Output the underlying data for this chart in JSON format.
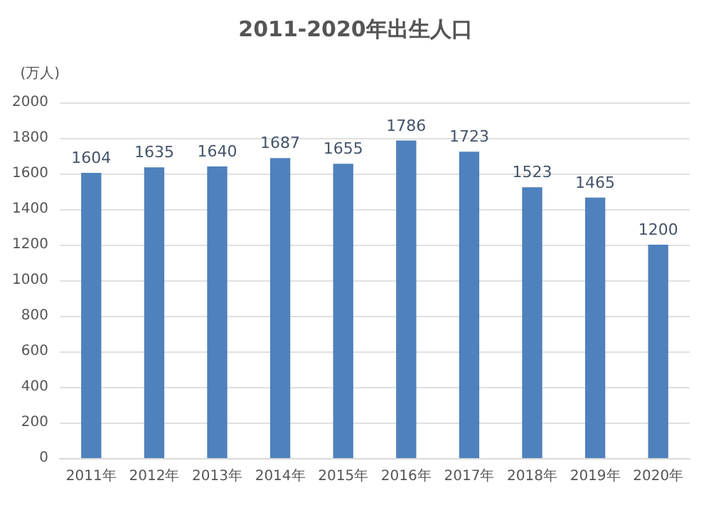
{
  "chart_data": {
    "type": "bar",
    "title": "2011-2020年出生人口",
    "ylabel": "(万人)",
    "categories": [
      "2011年",
      "2012年",
      "2013年",
      "2014年",
      "2015年",
      "2016年",
      "2017年",
      "2018年",
      "2019年",
      "2020年"
    ],
    "values": [
      1604,
      1635,
      1640,
      1687,
      1655,
      1786,
      1723,
      1523,
      1465,
      1200
    ],
    "color": "#4f81bd",
    "ylim": [
      0,
      2000
    ],
    "yticks": [
      0,
      200,
      400,
      600,
      800,
      1000,
      1200,
      1400,
      1600,
      1800,
      2000
    ],
    "grid": "y",
    "data_labels": true
  }
}
